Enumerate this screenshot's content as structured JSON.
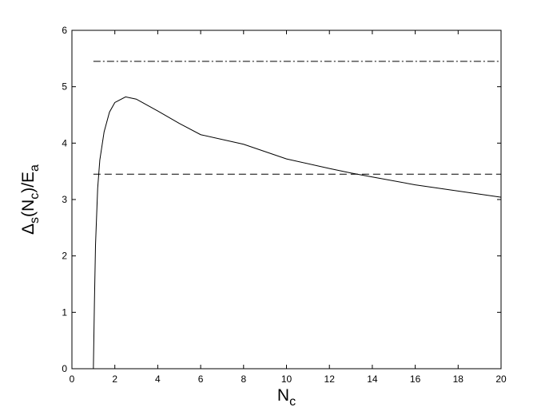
{
  "chart_data": {
    "type": "line",
    "xlabel_parts": [
      "N",
      "c"
    ],
    "ylabel_parts": [
      "Δ",
      "s",
      "(N",
      "c",
      ")/E",
      "a"
    ],
    "xlim": [
      0,
      20
    ],
    "xticks": [
      0,
      2,
      4,
      6,
      8,
      10,
      12,
      14,
      16,
      18,
      20
    ],
    "ylim": [
      0,
      6
    ],
    "yticks": [
      0,
      1,
      2,
      3,
      4,
      5,
      6
    ],
    "series": [
      {
        "color": "#000000",
        "dash": "none",
        "x": [
          1,
          1.05,
          1.1,
          1.2,
          1.3,
          1.5,
          1.75,
          2,
          2.5,
          3,
          4,
          5,
          6,
          8,
          10,
          12,
          13,
          14,
          16,
          18,
          20
        ],
        "values": [
          0,
          1.2,
          2.2,
          3.2,
          3.7,
          4.2,
          4.55,
          4.72,
          4.82,
          4.78,
          4.57,
          4.35,
          4.15,
          3.98,
          3.72,
          3.55,
          3.47,
          3.4,
          3.26,
          3.15,
          3.04
        ]
      },
      {
        "color": "#000000",
        "dash": "9,5",
        "x": [
          1,
          20
        ],
        "values": [
          3.45,
          3.45
        ]
      },
      {
        "color": "#000000",
        "dash": "9,3,2,3",
        "x": [
          1,
          20
        ],
        "values": [
          5.45,
          5.45
        ]
      }
    ]
  }
}
